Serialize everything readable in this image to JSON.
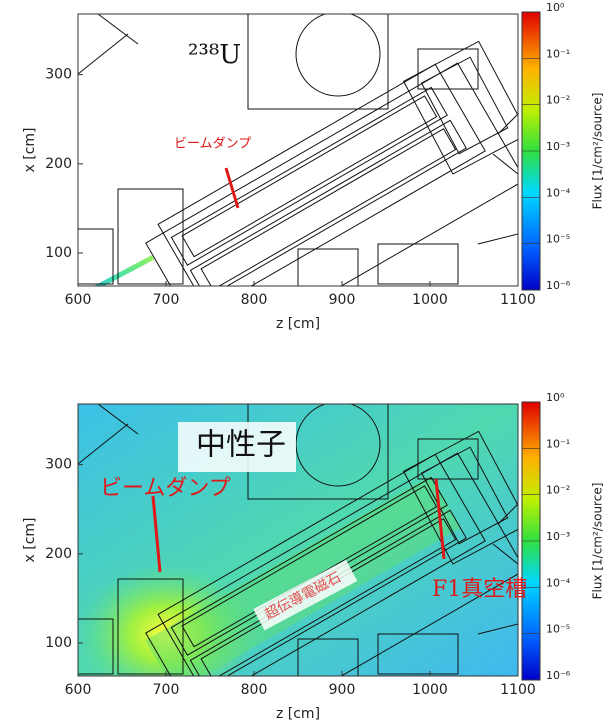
{
  "chart_data": [
    {
      "type": "heatmap",
      "xlabel": "z [cm]",
      "ylabel": "x [cm]",
      "xlim": [
        600,
        1100
      ],
      "ylim": [
        63,
        368
      ],
      "xticks": [
        600,
        700,
        800,
        900,
        1000,
        1100
      ],
      "yticks": [
        100,
        200,
        300
      ],
      "colorbar_label": "Flux [1/cm²/source]",
      "colormap": "jet",
      "log_color": true,
      "clim": [
        1e-06,
        1
      ],
      "cticks": [
        {
          "value": 1,
          "label": "10⁰"
        },
        {
          "value": 0.1,
          "label": "10⁻¹"
        },
        {
          "value": 0.01,
          "label": "10⁻²"
        },
        {
          "value": 0.001,
          "label": "10⁻³"
        },
        {
          "value": 0.0001,
          "label": "10⁻⁴"
        },
        {
          "value": 1e-05,
          "label": "10⁻⁵"
        },
        {
          "value": 1e-06,
          "label": "10⁻⁶"
        }
      ],
      "annotations": [
        "²³⁸U",
        "ビームダンプ"
      ]
    },
    {
      "type": "heatmap",
      "xlabel": "z [cm]",
      "ylabel": "x [cm]",
      "xlim": [
        600,
        1100
      ],
      "ylim": [
        63,
        368
      ],
      "xticks": [
        600,
        700,
        800,
        900,
        1000,
        1100
      ],
      "yticks": [
        100,
        200,
        300
      ],
      "colorbar_label": "Flux [1/cm²/source]",
      "colormap": "jet",
      "log_color": true,
      "clim": [
        1e-06,
        1
      ],
      "cticks": [
        {
          "value": 1,
          "label": "10⁰"
        },
        {
          "value": 0.1,
          "label": "10⁻¹"
        },
        {
          "value": 0.01,
          "label": "10⁻²"
        },
        {
          "value": 0.001,
          "label": "10⁻³"
        },
        {
          "value": 0.0001,
          "label": "10⁻⁴"
        },
        {
          "value": 1e-05,
          "label": "10⁻⁵"
        },
        {
          "value": 1e-06,
          "label": "10⁻⁶"
        }
      ],
      "annotations": [
        "中性子",
        "ビームダンプ",
        "超伝導電磁石",
        "F1真空槽"
      ]
    }
  ]
}
